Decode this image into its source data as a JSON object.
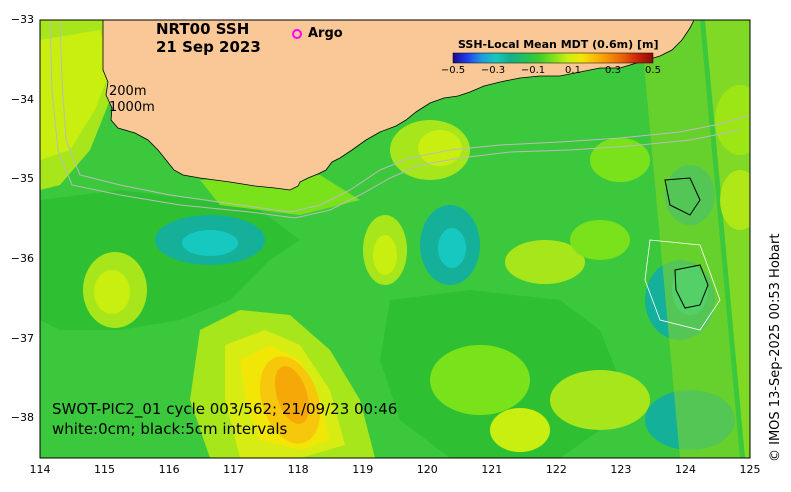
{
  "title": {
    "line1": "NRT00 SSH",
    "line2": "21 Sep 2023"
  },
  "legend": {
    "argo_label": "Argo",
    "argo_color": "#ff00ff"
  },
  "isobath_labels": [
    "200m",
    "1000m"
  ],
  "colorbar": {
    "title": "SSH-Local Mean MDT (0.6m) [m]",
    "ticks": [
      "−0.5",
      "−0.3",
      "−0.1",
      "0.1",
      "0.3",
      "0.5"
    ],
    "colors": [
      "#1a0a8c",
      "#1f3ff0",
      "#1e9be0",
      "#16c8c0",
      "#12b28a",
      "#20c060",
      "#3ccc2c",
      "#7ae21a",
      "#c8ef10",
      "#f2e606",
      "#fbb808",
      "#f58a08",
      "#e85a08",
      "#c8200a",
      "#8c0a0a"
    ]
  },
  "axes": {
    "x_ticks": [
      "114",
      "115",
      "116",
      "117",
      "118",
      "119",
      "120",
      "121",
      "122",
      "123",
      "124",
      "125"
    ],
    "y_ticks": [
      "−33",
      "−34",
      "−35",
      "−36",
      "−37",
      "−38"
    ],
    "x_range": [
      114,
      125
    ],
    "y_range": [
      -38.5,
      -33
    ]
  },
  "info": {
    "line1": "SWOT-PIC2_01 cycle 003/562; 21/09/23 00:46",
    "line2": "white:0cm; black:5cm intervals"
  },
  "credit": "© IMOS 13-Sep-2025 00:53 Hobart",
  "colors": {
    "land": "#f9c896",
    "sea_base": "#3cc83c"
  }
}
